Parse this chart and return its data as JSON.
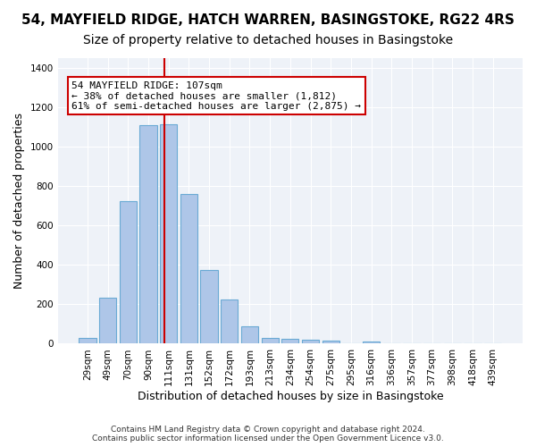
{
  "title1": "54, MAYFIELD RIDGE, HATCH WARREN, BASINGSTOKE, RG22 4RS",
  "title2": "Size of property relative to detached houses in Basingstoke",
  "xlabel": "Distribution of detached houses by size in Basingstoke",
  "ylabel": "Number of detached properties",
  "footnote": "Contains HM Land Registry data © Crown copyright and database right 2024.\nContains public sector information licensed under the Open Government Licence v3.0.",
  "bin_labels": [
    "29sqm",
    "49sqm",
    "70sqm",
    "90sqm",
    "111sqm",
    "131sqm",
    "152sqm",
    "172sqm",
    "193sqm",
    "213sqm",
    "234sqm",
    "254sqm",
    "275sqm",
    "295sqm",
    "316sqm",
    "336sqm",
    "357sqm",
    "377sqm",
    "398sqm",
    "418sqm",
    "439sqm"
  ],
  "bar_values": [
    30,
    235,
    725,
    1110,
    1115,
    760,
    375,
    225,
    90,
    30,
    25,
    20,
    15,
    0,
    10,
    0,
    0,
    0,
    0,
    0,
    0
  ],
  "bar_color": "#aec6e8",
  "bar_edge_color": "#6aaad4",
  "property_sqm": 107,
  "vline_color": "#cc0000",
  "annotation_text": "54 MAYFIELD RIDGE: 107sqm\n← 38% of detached houses are smaller (1,812)\n61% of semi-detached houses are larger (2,875) →",
  "annotation_box_color": "#ffffff",
  "annotation_box_edge": "#cc0000",
  "ylim": [
    0,
    1450
  ],
  "yticks": [
    0,
    200,
    400,
    600,
    800,
    1000,
    1200,
    1400
  ],
  "bg_color": "#eef2f8",
  "grid_color": "#ffffff",
  "title1_fontsize": 11,
  "title2_fontsize": 10,
  "xlabel_fontsize": 9,
  "ylabel_fontsize": 9,
  "tick_fontsize": 7.5,
  "annotation_fontsize": 8
}
